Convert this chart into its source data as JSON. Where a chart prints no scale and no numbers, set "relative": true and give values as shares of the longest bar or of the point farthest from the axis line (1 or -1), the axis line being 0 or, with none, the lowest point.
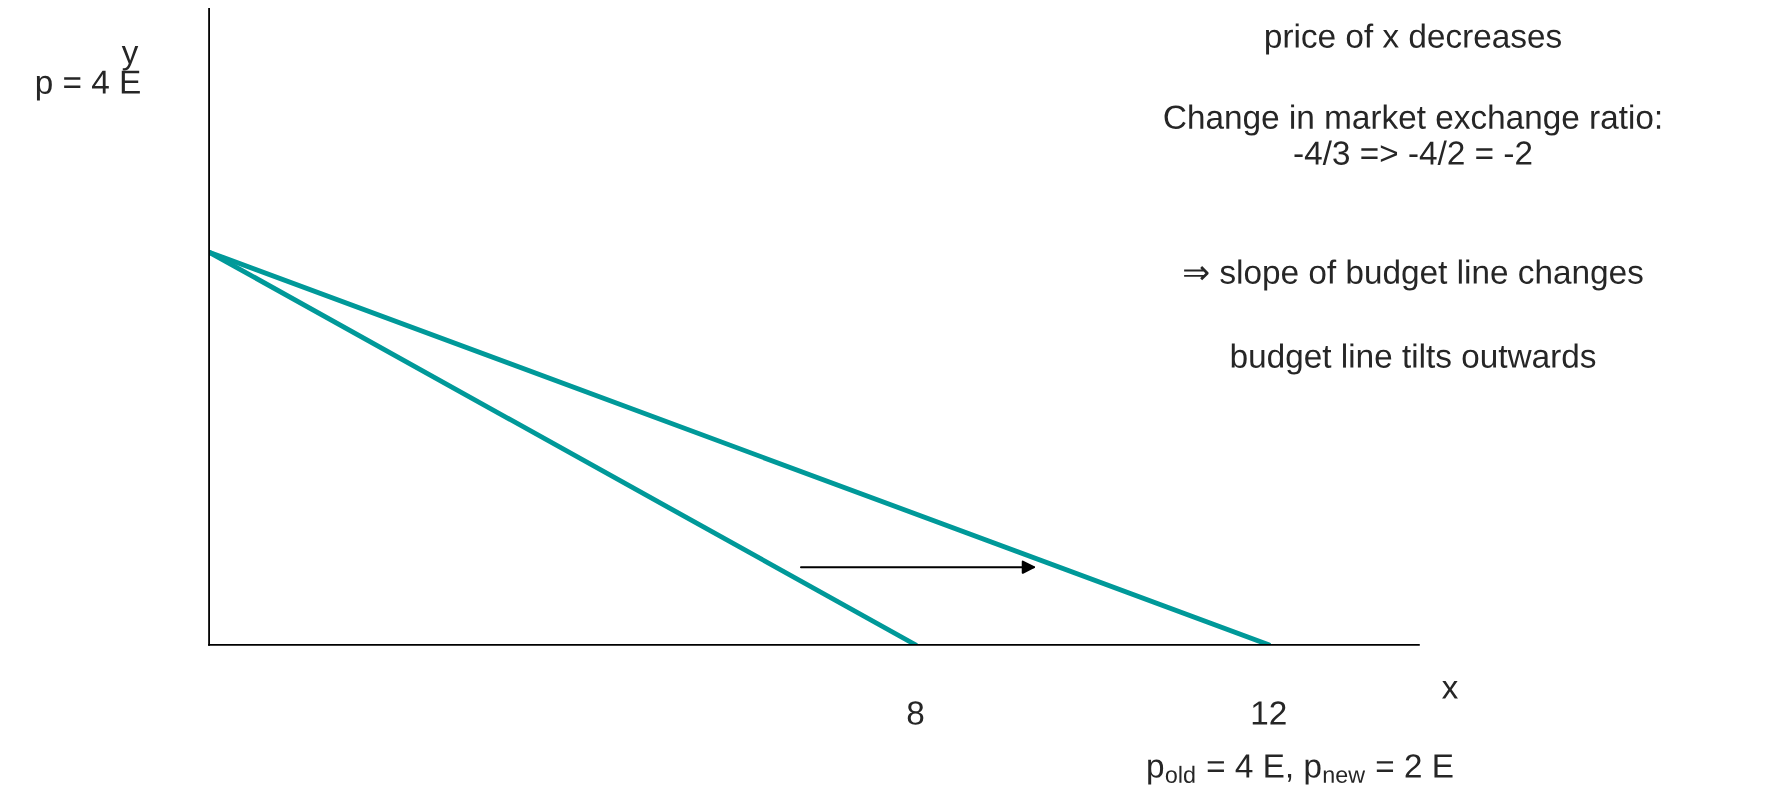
{
  "chart_data": {
    "type": "line",
    "relative": true,
    "tick_labels": "x",
    "xlabel": "x",
    "xlim": [
      0,
      13.7
    ],
    "xticks": [
      8,
      12
    ],
    "line_style": "solid",
    "series": [
      {
        "color": "#009999",
        "x": [
          0,
          8
        ],
        "values": [
          1,
          0
        ]
      },
      {
        "color": "#009999",
        "x": [
          0,
          12
        ],
        "values": [
          1,
          0
        ]
      }
    ],
    "annotations": [
      "y",
      "p = 4 E",
      "price of x decreases",
      "Change in market exchange ratio:\n-4/3 => -4/2 = -2",
      "⇒ slope of budget line changes",
      "budget line tilts outwards",
      "p$_{old}$ = 4 E, p$_{new}$ = 2 E"
    ]
  }
}
